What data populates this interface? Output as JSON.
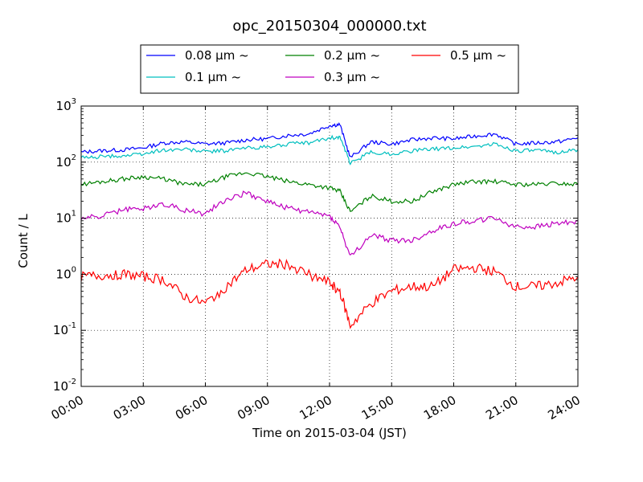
{
  "chart_data": {
    "type": "line",
    "title": "opc_20150304_000000.txt",
    "xlabel": "Time on 2015-03-04 (JST)",
    "ylabel": "Count / L",
    "yscale": "log",
    "ylim": [
      0.01,
      1000
    ],
    "xlim": [
      "00:00",
      "24:00"
    ],
    "grid": true,
    "legend_position": "top, above plot",
    "x_ticks": [
      "00:00",
      "03:00",
      "06:00",
      "09:00",
      "12:00",
      "15:00",
      "18:00",
      "21:00",
      "24:00"
    ],
    "y_ticks": [
      {
        "value": 0.01,
        "base": "10",
        "exp": "-2"
      },
      {
        "value": 0.1,
        "base": "10",
        "exp": "-1"
      },
      {
        "value": 1,
        "base": "10",
        "exp": "0"
      },
      {
        "value": 10,
        "base": "10",
        "exp": "1"
      },
      {
        "value": 100,
        "base": "10",
        "exp": "2"
      },
      {
        "value": 1000,
        "base": "10",
        "exp": "3"
      }
    ],
    "x": [
      "00:00",
      "01:00",
      "02:00",
      "03:00",
      "04:00",
      "05:00",
      "06:00",
      "07:00",
      "08:00",
      "09:00",
      "10:00",
      "11:00",
      "12:00",
      "12:30",
      "13:00",
      "14:00",
      "15:00",
      "16:00",
      "17:00",
      "18:00",
      "19:00",
      "20:00",
      "21:00",
      "22:00",
      "23:00",
      "24:00"
    ],
    "series": [
      {
        "name": "0.08 μm ~",
        "color": "#0000ff",
        "values": [
          150,
          160,
          165,
          180,
          220,
          230,
          210,
          220,
          250,
          260,
          300,
          320,
          450,
          470,
          120,
          230,
          210,
          250,
          270,
          260,
          290,
          320,
          210,
          220,
          230,
          270
        ]
      },
      {
        "name": "0.1 μm ~",
        "color": "#00bfbf",
        "values": [
          120,
          125,
          130,
          140,
          165,
          170,
          155,
          160,
          180,
          185,
          210,
          220,
          270,
          280,
          95,
          150,
          140,
          160,
          170,
          180,
          190,
          210,
          160,
          160,
          150,
          165
        ]
      },
      {
        "name": "0.2 μm ~",
        "color": "#008000",
        "values": [
          40,
          45,
          50,
          55,
          50,
          40,
          40,
          55,
          65,
          55,
          45,
          40,
          35,
          30,
          13,
          25,
          20,
          20,
          30,
          40,
          45,
          45,
          40,
          40,
          42,
          40
        ]
      },
      {
        "name": "0.3 μm ~",
        "color": "#bf00bf",
        "values": [
          10,
          11,
          14,
          15,
          18,
          14,
          12,
          22,
          28,
          20,
          15,
          13,
          11,
          7,
          2,
          5,
          4,
          4,
          6,
          8,
          9,
          10,
          7,
          7,
          8,
          9
        ]
      },
      {
        "name": "0.5 μm ~",
        "color": "#ff0000",
        "values": [
          0.9,
          0.95,
          1.0,
          0.9,
          0.8,
          0.4,
          0.3,
          0.6,
          1.2,
          1.5,
          1.5,
          1.0,
          0.7,
          0.5,
          0.12,
          0.3,
          0.5,
          0.6,
          0.6,
          1.2,
          1.3,
          1.1,
          0.6,
          0.6,
          0.7,
          0.9
        ]
      }
    ]
  }
}
